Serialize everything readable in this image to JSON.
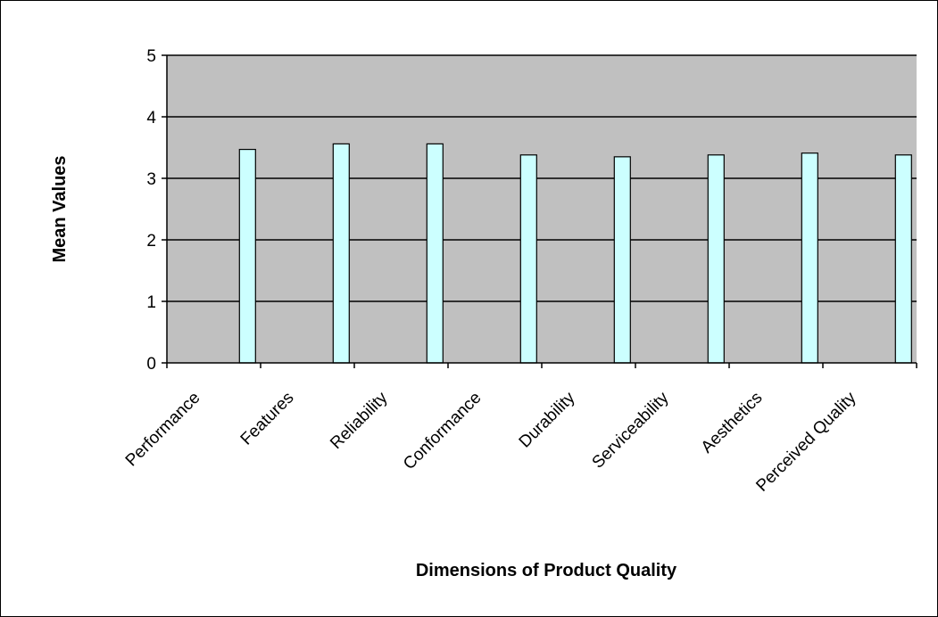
{
  "chart_data": {
    "type": "bar",
    "title": "",
    "xlabel": "Dimensions of Product Quality",
    "ylabel": "Mean Values",
    "categories": [
      "Performance",
      "Features",
      "Reliability",
      "Conformance",
      "Durability",
      "Serviceability",
      "Aesthetics",
      "Perceived Quality"
    ],
    "values": [
      3.47,
      3.56,
      3.56,
      3.38,
      3.35,
      3.38,
      3.41,
      3.38
    ],
    "ylim": [
      0,
      5
    ],
    "yticks": [
      "0",
      "1",
      "2",
      "3",
      "4",
      "5"
    ],
    "grid": true,
    "legend": "none",
    "colors": {
      "plot_background": "#c0c0c0",
      "bar_fill": "#ccffff",
      "bar_stroke": "#000000",
      "gridline": "#000000"
    }
  }
}
